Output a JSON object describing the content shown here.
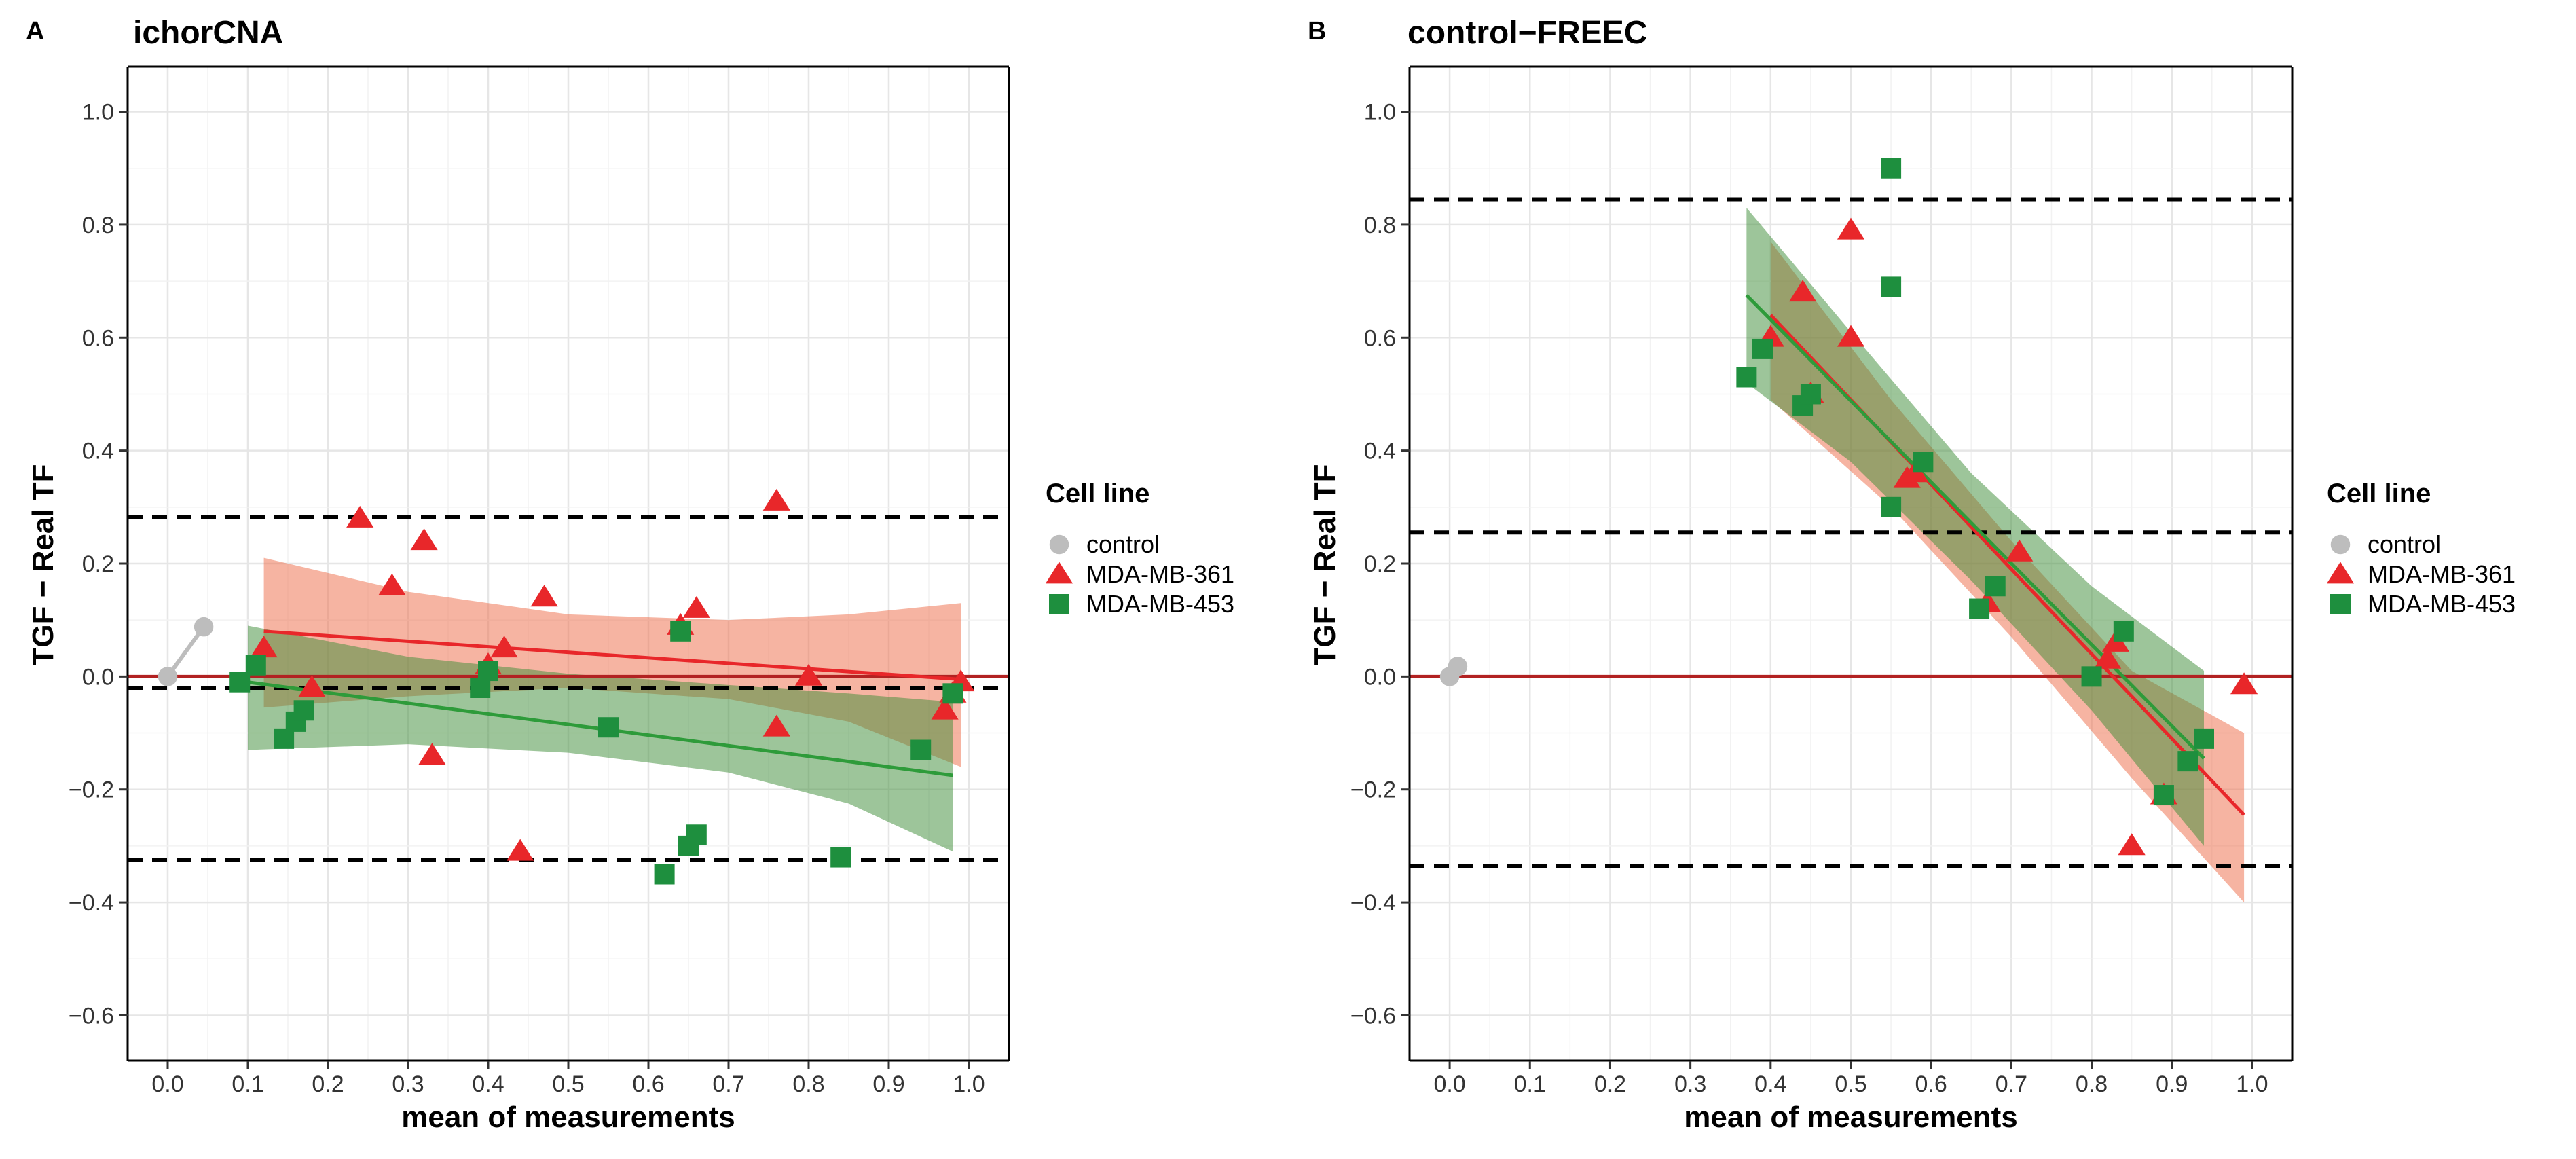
{
  "chart_data": [
    {
      "panel_label": "A",
      "title": "ichorCNA",
      "type": "scatter",
      "xlabel": "mean of measurements",
      "ylabel": "TGF − Real TF",
      "xlim": [
        -0.05,
        1.05
      ],
      "ylim": [
        -0.68,
        1.08
      ],
      "x_ticks": [
        0.0,
        0.1,
        0.2,
        0.3,
        0.4,
        0.5,
        0.6,
        0.7,
        0.8,
        0.9,
        1.0
      ],
      "x_tick_labels": [
        "0.0",
        "0.1",
        "0.2",
        "0.3",
        "0.4",
        "0.5",
        "0.6",
        "0.7",
        "0.8",
        "0.9",
        "1.0"
      ],
      "y_ticks": [
        -0.6,
        -0.4,
        -0.2,
        0.0,
        0.2,
        0.4,
        0.6,
        0.8,
        1.0
      ],
      "y_tick_labels": [
        "−0.6",
        "−0.4",
        "−0.2",
        "0.0",
        "0.2",
        "0.4",
        "0.6",
        "0.8",
        "1.0"
      ],
      "grid": true,
      "hlines": [
        {
          "y": 0.0,
          "style": "solid",
          "color": "#B22222"
        },
        {
          "y": -0.02,
          "style": "dashed",
          "color": "#000000"
        },
        {
          "y": 0.283,
          "style": "dashed",
          "color": "#000000"
        },
        {
          "y": -0.325,
          "style": "dashed",
          "color": "#000000"
        }
      ],
      "series": [
        {
          "name": "control",
          "marker": "circle",
          "color": "#BDBDBD",
          "points": [
            [
              0.0,
              0.0
            ],
            [
              0.045,
              0.088
            ]
          ],
          "connect": true
        },
        {
          "name": "MDA-MB-361",
          "marker": "triangle",
          "color": "#E8272A",
          "points": [
            [
              0.12,
              0.05
            ],
            [
              0.24,
              0.28
            ],
            [
              0.28,
              0.16
            ],
            [
              0.32,
              0.24
            ],
            [
              0.33,
              -0.14
            ],
            [
              0.42,
              0.05
            ],
            [
              0.44,
              -0.31
            ],
            [
              0.47,
              0.14
            ],
            [
              0.66,
              0.12
            ],
            [
              0.76,
              0.31
            ],
            [
              0.76,
              -0.09
            ],
            [
              0.8,
              0.0
            ],
            [
              0.97,
              -0.06
            ],
            [
              0.98,
              -0.03
            ],
            [
              0.99,
              -0.01
            ],
            [
              0.18,
              -0.02
            ],
            [
              0.4,
              0.02
            ],
            [
              0.64,
              0.09
            ]
          ],
          "trend": {
            "x": [
              0.12,
              0.99
            ],
            "y": [
              0.08,
              -0.005
            ]
          },
          "band": {
            "x": [
              0.12,
              0.3,
              0.5,
              0.7,
              0.85,
              0.99
            ],
            "upper": [
              0.21,
              0.15,
              0.11,
              0.1,
              0.11,
              0.13
            ],
            "lower": [
              -0.055,
              -0.035,
              -0.02,
              -0.04,
              -0.08,
              -0.16
            ]
          }
        },
        {
          "name": "MDA-MB-453",
          "marker": "square",
          "color": "#1E8F3E",
          "points": [
            [
              0.09,
              -0.01
            ],
            [
              0.11,
              0.02
            ],
            [
              0.145,
              -0.11
            ],
            [
              0.16,
              -0.08
            ],
            [
              0.17,
              -0.06
            ],
            [
              0.39,
              -0.02
            ],
            [
              0.4,
              0.01
            ],
            [
              0.55,
              -0.09
            ],
            [
              0.62,
              -0.35
            ],
            [
              0.65,
              -0.3
            ],
            [
              0.66,
              -0.28
            ],
            [
              0.64,
              0.08
            ],
            [
              0.84,
              -0.32
            ],
            [
              0.94,
              -0.13
            ],
            [
              0.98,
              -0.03
            ]
          ],
          "trend": {
            "x": [
              0.1,
              0.98
            ],
            "y": [
              -0.01,
              -0.175
            ]
          },
          "band": {
            "x": [
              0.1,
              0.3,
              0.5,
              0.7,
              0.85,
              0.98
            ],
            "upper": [
              0.09,
              0.035,
              0.005,
              -0.015,
              -0.03,
              -0.045
            ],
            "lower": [
              -0.13,
              -0.12,
              -0.135,
              -0.17,
              -0.225,
              -0.31
            ]
          }
        }
      ],
      "legend": {
        "title": "Cell line",
        "placement": "right",
        "entries": [
          "control",
          "MDA-MB-361",
          "MDA-MB-453"
        ]
      }
    },
    {
      "panel_label": "B",
      "title": "control−FREEC",
      "type": "scatter",
      "xlabel": "mean of measurements",
      "ylabel": "TGF − Real TF",
      "xlim": [
        -0.05,
        1.05
      ],
      "ylim": [
        -0.68,
        1.08
      ],
      "x_ticks": [
        0.0,
        0.1,
        0.2,
        0.3,
        0.4,
        0.5,
        0.6,
        0.7,
        0.8,
        0.9,
        1.0
      ],
      "x_tick_labels": [
        "0.0",
        "0.1",
        "0.2",
        "0.3",
        "0.4",
        "0.5",
        "0.6",
        "0.7",
        "0.8",
        "0.9",
        "1.0"
      ],
      "y_ticks": [
        -0.6,
        -0.4,
        -0.2,
        0.0,
        0.2,
        0.4,
        0.6,
        0.8,
        1.0
      ],
      "y_tick_labels": [
        "−0.6",
        "−0.4",
        "−0.2",
        "0.0",
        "0.2",
        "0.4",
        "0.6",
        "0.8",
        "1.0"
      ],
      "grid": true,
      "hlines": [
        {
          "y": 0.0,
          "style": "solid",
          "color": "#B22222"
        },
        {
          "y": 0.845,
          "style": "dashed",
          "color": "#000000"
        },
        {
          "y": 0.255,
          "style": "dashed",
          "color": "#000000"
        },
        {
          "y": -0.335,
          "style": "dashed",
          "color": "#000000"
        }
      ],
      "series": [
        {
          "name": "control",
          "marker": "circle",
          "color": "#BDBDBD",
          "points": [
            [
              0.0,
              0.0
            ],
            [
              0.01,
              0.018
            ]
          ],
          "connect": true
        },
        {
          "name": "MDA-MB-361",
          "marker": "triangle",
          "color": "#E8272A",
          "points": [
            [
              0.4,
              0.6
            ],
            [
              0.44,
              0.68
            ],
            [
              0.5,
              0.79
            ],
            [
              0.5,
              0.6
            ],
            [
              0.57,
              0.35
            ],
            [
              0.67,
              0.13
            ],
            [
              0.71,
              0.22
            ],
            [
              0.82,
              0.03
            ],
            [
              0.83,
              0.06
            ],
            [
              0.85,
              -0.3
            ],
            [
              0.89,
              -0.21
            ],
            [
              0.99,
              -0.015
            ],
            [
              0.45,
              0.5
            ],
            [
              0.58,
              0.36
            ]
          ],
          "trend": {
            "x": [
              0.4,
              0.99
            ],
            "y": [
              0.64,
              -0.245
            ]
          },
          "band": {
            "x": [
              0.4,
              0.55,
              0.7,
              0.85,
              0.99
            ],
            "upper": [
              0.77,
              0.49,
              0.24,
              0.01,
              -0.1
            ],
            "lower": [
              0.49,
              0.3,
              0.07,
              -0.18,
              -0.4
            ]
          }
        },
        {
          "name": "MDA-MB-453",
          "marker": "square",
          "color": "#1E8F3E",
          "points": [
            [
              0.37,
              0.53
            ],
            [
              0.39,
              0.58
            ],
            [
              0.44,
              0.48
            ],
            [
              0.45,
              0.5
            ],
            [
              0.55,
              0.9
            ],
            [
              0.55,
              0.69
            ],
            [
              0.55,
              0.3
            ],
            [
              0.59,
              0.38
            ],
            [
              0.66,
              0.12
            ],
            [
              0.68,
              0.16
            ],
            [
              0.8,
              0.0
            ],
            [
              0.84,
              0.08
            ],
            [
              0.89,
              -0.21
            ],
            [
              0.92,
              -0.15
            ],
            [
              0.94,
              -0.11
            ]
          ],
          "trend": {
            "x": [
              0.37,
              0.94
            ],
            "y": [
              0.675,
              -0.145
            ]
          },
          "band": {
            "x": [
              0.37,
              0.5,
              0.65,
              0.8,
              0.94
            ],
            "upper": [
              0.83,
              0.61,
              0.36,
              0.16,
              0.01
            ],
            "lower": [
              0.52,
              0.38,
              0.17,
              -0.06,
              -0.3
            ]
          }
        }
      ],
      "legend": {
        "title": "Cell line",
        "placement": "right",
        "entries": [
          "control",
          "MDA-MB-361",
          "MDA-MB-453"
        ]
      }
    }
  ]
}
